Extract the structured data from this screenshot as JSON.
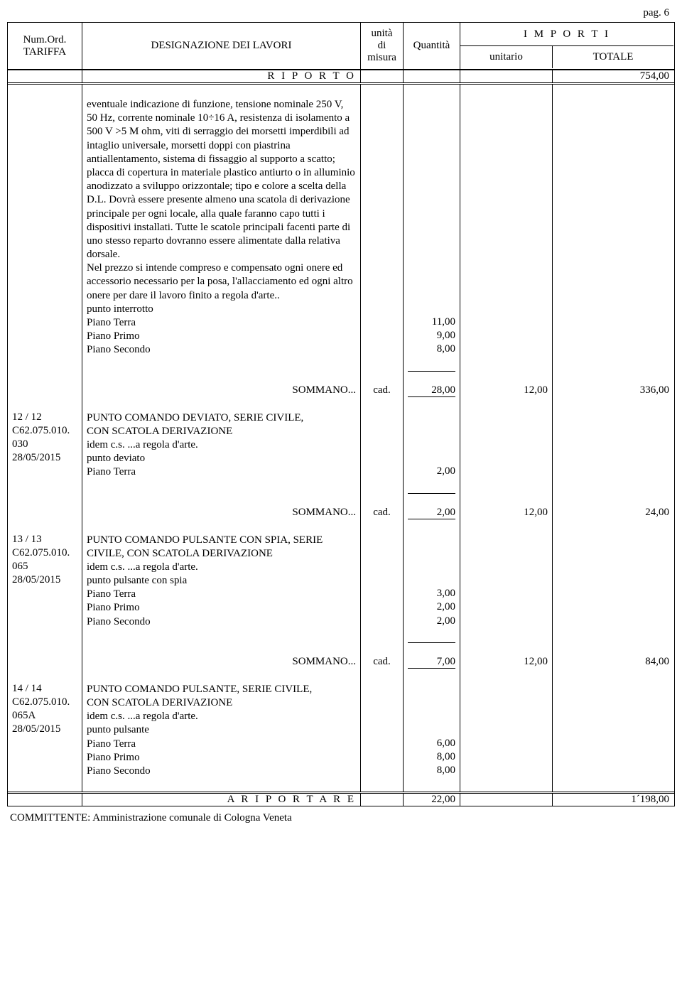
{
  "page_label": "pag. 6",
  "header": {
    "col_tariffa": [
      "Num.Ord.",
      "TARIFFA"
    ],
    "col_designazione": "DESIGNAZIONE DEI LAVORI",
    "col_unita": [
      "unità",
      "di",
      "misura"
    ],
    "col_quantita": "Quantità",
    "col_importi": "I M P O R T I",
    "col_unitario": "unitario",
    "col_totale": "TOTALE"
  },
  "riporto": {
    "label": "R I P O R T O",
    "totale": "754,00"
  },
  "block1": {
    "desc": "eventuale indicazione di funzione, tensione nominale 250 V, 50 Hz, corrente nominale 10÷16 A, resistenza di isolamento a 500 V >5 M ohm, viti di serraggio dei morsetti imperdibili ad intaglio universale, morsetti doppi con piastrina antiallentamento, sistema di fissaggio al supporto a scatto; placca di copertura in materiale plastico antiurto o in alluminio anodizzato a sviluppo orizzontale; tipo e colore a scelta della D.L. Dovrà essere presente almeno una scatola di derivazione principale per ogni locale, alla quale faranno capo tutti i dispositivi installati. Tutte le scatole principali facenti parte di uno stesso reparto dovranno essere alimentate dalla relativa dorsale.",
    "desc2": "Nel prezzo si intende compreso e compensato ogni onere ed accessorio necessario per la posa, l'allacciamento ed ogni altro onere per dare il lavoro finito a regola d'arte..",
    "sub": "punto interrotto",
    "rows": [
      {
        "label": "Piano Terra",
        "q": "11,00"
      },
      {
        "label": "Piano Primo",
        "q": "9,00"
      },
      {
        "label": "Piano Secondo",
        "q": "8,00"
      }
    ],
    "sommano": {
      "label": "SOMMANO...",
      "um": "cad.",
      "q": "28,00",
      "u": "12,00",
      "t": "336,00"
    }
  },
  "block2": {
    "code": [
      "12 / 12",
      "C62.075.010.",
      "030",
      "28/05/2015"
    ],
    "title": "PUNTO COMANDO DEVIATO, SERIE CIVILE, CON SCATOLA DERIVAZIONE",
    "idem": "idem c.s. ...a regola d'arte.",
    "sub": "punto deviato",
    "rows": [
      {
        "label": "Piano Terra",
        "q": "2,00"
      }
    ],
    "sommano": {
      "label": "SOMMANO...",
      "um": "cad.",
      "q": "2,00",
      "u": "12,00",
      "t": "24,00"
    }
  },
  "block3": {
    "code": [
      "13 / 13",
      "C62.075.010.",
      "065",
      "28/05/2015"
    ],
    "title": "PUNTO COMANDO PULSANTE CON SPIA, SERIE CIVILE, CON SCATOLA DERIVAZIONE",
    "idem": "idem c.s. ...a regola d'arte.",
    "sub": "punto pulsante con spia",
    "rows": [
      {
        "label": "Piano Terra",
        "q": "3,00"
      },
      {
        "label": "Piano Primo",
        "q": "2,00"
      },
      {
        "label": "Piano Secondo",
        "q": "2,00"
      }
    ],
    "sommano": {
      "label": "SOMMANO...",
      "um": "cad.",
      "q": "7,00",
      "u": "12,00",
      "t": "84,00"
    }
  },
  "block4": {
    "code": [
      "14 / 14",
      "C62.075.010.",
      "065A",
      "28/05/2015"
    ],
    "title": "PUNTO COMANDO PULSANTE, SERIE CIVILE, CON SCATOLA DERIVAZIONE",
    "idem": "idem c.s. ...a regola d'arte.",
    "sub": "punto pulsante",
    "rows": [
      {
        "label": "Piano Terra",
        "q": "6,00"
      },
      {
        "label": "Piano Primo",
        "q": "8,00"
      },
      {
        "label": "Piano Secondo",
        "q": "8,00"
      }
    ]
  },
  "riportare": {
    "label": "A   R I P O R T A R E",
    "q": "22,00",
    "t": "1´198,00"
  },
  "footer": "COMMITTENTE: Amministrazione comunale di Cologna Veneta"
}
